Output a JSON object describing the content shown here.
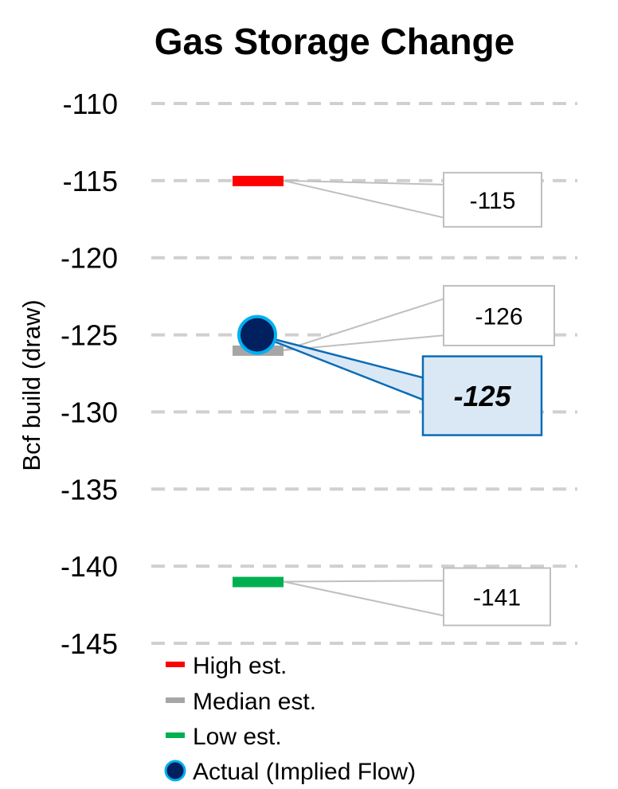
{
  "chart_data": {
    "type": "scatter",
    "title": "Gas Storage Change",
    "ylabel": "Bcf build (draw)",
    "ylim": [
      -145,
      -110
    ],
    "yticks": [
      -110,
      -115,
      -120,
      -125,
      -130,
      -135,
      -140,
      -145
    ],
    "tick_labels": [
      "-110",
      "-115",
      "-120",
      "-125",
      "-130",
      "-135",
      "-140",
      "-145"
    ],
    "grid": true,
    "series": [
      {
        "name": "High est.",
        "value": -115,
        "label": "-115",
        "color": "#ff0000",
        "marker": "dash"
      },
      {
        "name": "Median est.",
        "value": -126,
        "label": "-126",
        "color": "#a6a6a6",
        "marker": "dash"
      },
      {
        "name": "Low est.",
        "value": -141,
        "label": "-141",
        "color": "#00b050",
        "marker": "dash"
      },
      {
        "name": "Actual (Implied Flow)",
        "value": -125,
        "label": "-125",
        "color": "#002060",
        "edge_color": "#00b0f0",
        "marker": "circle"
      }
    ],
    "legend_position": "bottom-left"
  }
}
